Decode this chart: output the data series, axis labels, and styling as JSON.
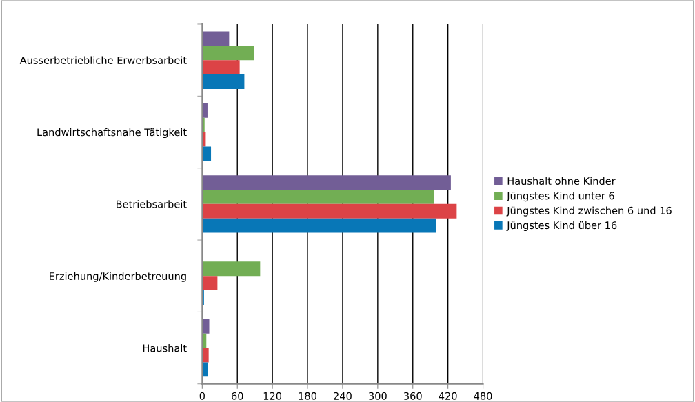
{
  "chart_data": {
    "type": "bar",
    "orientation": "horizontal",
    "categories": [
      "Ausserbetriebliche Erwerbsarbeit",
      "Landwirtschaftsnahe Tätigkeit",
      "Betriebsarbeit",
      "Erziehung/Kinderbetreuung",
      "Haushalt"
    ],
    "series": [
      {
        "name": "Haushalt ohne Kinder",
        "color": "#725e96",
        "values": [
          46,
          9,
          425,
          0,
          12
        ]
      },
      {
        "name": "Jüngstes Kind unter 6",
        "color": "#72ae54",
        "values": [
          89,
          4,
          396,
          99,
          7
        ]
      },
      {
        "name": "Jüngstes Kind zwischen 6 und 16",
        "color": "#dc4346",
        "values": [
          64,
          6,
          435,
          26,
          11
        ]
      },
      {
        "name": "Jüngstes Kind über 16",
        "color": "#0877b7",
        "values": [
          72,
          15,
          400,
          3,
          10
        ]
      }
    ],
    "xlim": [
      0,
      480
    ],
    "xticks": [
      0,
      60,
      120,
      180,
      240,
      300,
      360,
      420,
      480
    ],
    "grid": "x",
    "legend": "right"
  }
}
